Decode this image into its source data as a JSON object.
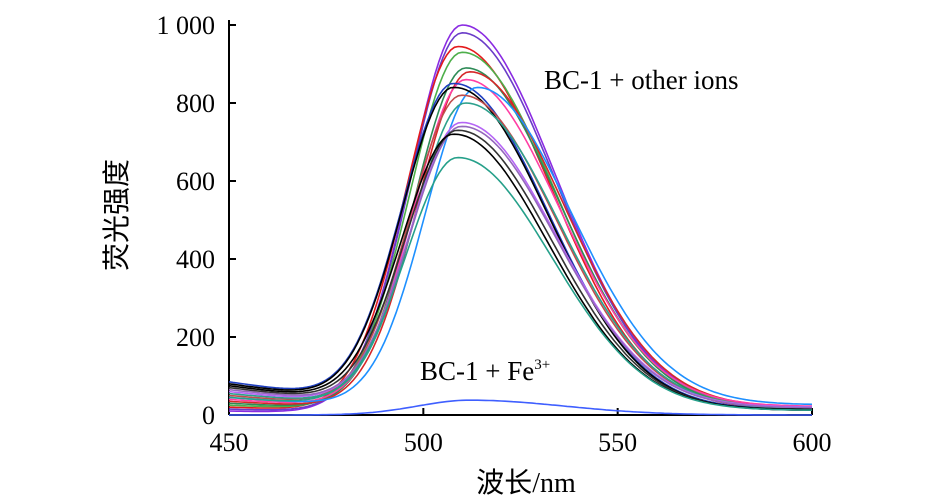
{
  "chart_data": {
    "type": "line",
    "xlabel": "波长/nm",
    "ylabel": "荧光强度",
    "xlim": [
      450,
      600
    ],
    "ylim": [
      0,
      1000
    ],
    "x_ticks": [
      450,
      500,
      550,
      600
    ],
    "x_tick_labels": [
      "450",
      "500",
      "550",
      "600"
    ],
    "y_ticks": [
      0,
      200,
      400,
      600,
      800,
      1000
    ],
    "y_tick_labels": [
      "0",
      "200",
      "400",
      "600",
      "800",
      "1 000"
    ],
    "grid": false,
    "annotations": {
      "other_ions": "BC-1 + other ions",
      "fe_base": "BC-1 + Fe",
      "fe_sup": "3+"
    },
    "series": [
      {
        "color": "#8a2be2",
        "peak_x": 510,
        "peak": 1000,
        "start": 10,
        "end": 20
      },
      {
        "color": "#6a3cc8",
        "peak_x": 510,
        "peak": 980,
        "start": 15,
        "end": 18
      },
      {
        "color": "#e41a1c",
        "peak_x": 509,
        "peak": 945,
        "start": 20,
        "end": 15
      },
      {
        "color": "#4daf4a",
        "peak_x": 510,
        "peak": 930,
        "start": 25,
        "end": 18
      },
      {
        "color": "#2e8b57",
        "peak_x": 511,
        "peak": 890,
        "start": 30,
        "end": 14
      },
      {
        "color": "#d62728",
        "peak_x": 512,
        "peak": 880,
        "start": 35,
        "end": 20
      },
      {
        "color": "#ff3fa4",
        "peak_x": 511,
        "peak": 860,
        "start": 40,
        "end": 22
      },
      {
        "color": "#1f3fbf",
        "peak_x": 508,
        "peak": 850,
        "start": 85,
        "end": 14
      },
      {
        "color": "#1e90ff",
        "peak_x": 514,
        "peak": 840,
        "start": 45,
        "end": 26
      },
      {
        "color": "#000000",
        "peak_x": 508,
        "peak": 840,
        "start": 80,
        "end": 12
      },
      {
        "color": "#c04c4c",
        "peak_x": 510,
        "peak": 820,
        "start": 50,
        "end": 18
      },
      {
        "color": "#2ca08c",
        "peak_x": 511,
        "peak": 800,
        "start": 55,
        "end": 16
      },
      {
        "color": "#b565f5",
        "peak_x": 510,
        "peak": 750,
        "start": 60,
        "end": 20
      },
      {
        "color": "#9467bd",
        "peak_x": 510,
        "peak": 740,
        "start": 65,
        "end": 18
      },
      {
        "color": "#333333",
        "peak_x": 509,
        "peak": 730,
        "start": 70,
        "end": 12
      },
      {
        "color": "#000000",
        "peak_x": 508,
        "peak": 720,
        "start": 75,
        "end": 14
      },
      {
        "color": "#26a08a",
        "peak_x": 509,
        "peak": 660,
        "start": 45,
        "end": 12
      },
      {
        "color": "#3f5fff",
        "peak_x": 512,
        "peak": 38,
        "start": 0,
        "end": 0
      }
    ]
  }
}
